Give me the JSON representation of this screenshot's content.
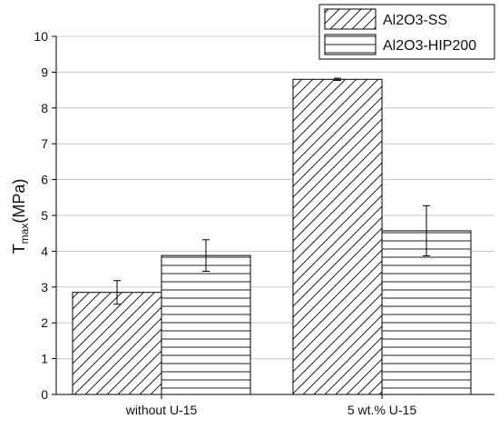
{
  "chart_data": {
    "type": "bar",
    "categories": [
      "without U-15",
      "5 wt.% U-15"
    ],
    "series": [
      {
        "name": "Al2O3-SS",
        "values": [
          2.85,
          8.8
        ],
        "errors": [
          0.33,
          0.03
        ],
        "pattern": "diagonal-hatch"
      },
      {
        "name": "Al2O3-HIP200",
        "values": [
          3.88,
          4.57
        ],
        "errors": [
          0.44,
          0.7
        ],
        "pattern": "horizontal-lines"
      }
    ],
    "ylabel_main": "T",
    "ylabel_sub": "max",
    "ylabel_tail": "(MPa)",
    "ylim": [
      0,
      10
    ],
    "yticks": [
      "0",
      "1",
      "2",
      "3",
      "4",
      "5",
      "6",
      "7",
      "8",
      "9",
      "10"
    ],
    "grid": true,
    "legend_position": "top-right",
    "colors": {
      "stroke": "#000000",
      "grid": "#c8c8c8",
      "background": "#ffffff"
    }
  }
}
